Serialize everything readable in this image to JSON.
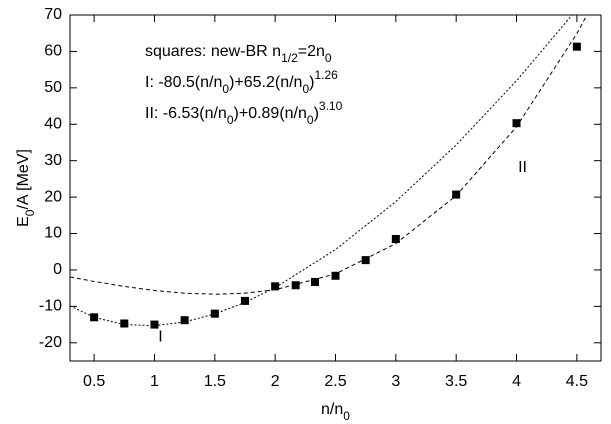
{
  "chart_data": {
    "type": "line",
    "xlabel": [
      {
        "text": "n/n"
      },
      {
        "text": "0",
        "style": "sub"
      }
    ],
    "ylabel": [
      {
        "text": "E"
      },
      {
        "text": "0",
        "style": "sub"
      },
      {
        "text": "/A  [MeV]"
      }
    ],
    "annotation": [
      [
        {
          "text": "squares: new-BR n"
        },
        {
          "text": "1/2",
          "style": "sub"
        },
        {
          "text": "=2n"
        },
        {
          "text": "0",
          "style": "sub"
        }
      ],
      [
        {
          "text": "I: -80.5(n/n"
        },
        {
          "text": "0",
          "style": "sub"
        },
        {
          "text": ")+65.2(n/n"
        },
        {
          "text": "0",
          "style": "sub"
        },
        {
          "text": ")"
        },
        {
          "text": "1.26",
          "style": "sup"
        }
      ],
      [
        {
          "text": "II: -6.53(n/n"
        },
        {
          "text": "0",
          "style": "sub"
        },
        {
          "text": ")+0.89(n/n"
        },
        {
          "text": "0",
          "style": "sub"
        },
        {
          "text": ")"
        },
        {
          "text": "3.10",
          "style": "sup"
        }
      ]
    ],
    "x": [
      0.3,
      0.5,
      0.75,
      1,
      1.25,
      1.5,
      1.75,
      2,
      2.5,
      3,
      3.5,
      4,
      4.5,
      4.7
    ],
    "series": [
      {
        "name": "I",
        "color": "#000000",
        "dash": "2,2",
        "label_at": [
          1.05,
          -18.5
        ],
        "values": [
          -9.84,
          -13.02,
          -15.0,
          -15.3,
          -14.27,
          -12.08,
          -8.91,
          -4.85,
          5.6,
          18.77,
          34.31,
          51.96,
          71.56,
          79.9
        ]
      },
      {
        "name": "II",
        "color": "#000000",
        "dash": "4,3",
        "label_at": [
          4.05,
          28
        ],
        "values": [
          -1.94,
          -3.16,
          -4.53,
          -5.64,
          -6.39,
          -6.67,
          -6.38,
          -5.43,
          -1.09,
          7.24,
          20.4,
          39.31,
          64.88,
          77.2
        ]
      }
    ],
    "markers": {
      "color": "#000000",
      "x": [
        0.5,
        0.75,
        1,
        1.25,
        1.5,
        1.75,
        2,
        2.17,
        2.33,
        2.5,
        2.75,
        3,
        3.5,
        4,
        4.5
      ],
      "values": [
        -13,
        -14.7,
        -15,
        -13.8,
        -12,
        -8.5,
        -4.5,
        -4.2,
        -3.3,
        -1.6,
        2.7,
        8.5,
        20.7,
        40.3,
        61.3
      ]
    },
    "xlim": [
      0.3,
      4.7
    ],
    "ylim": [
      -25,
      70
    ],
    "xticks": [
      0.5,
      1,
      1.5,
      2,
      2.5,
      3,
      3.5,
      4,
      4.5
    ],
    "yticks": [
      -20,
      -10,
      0,
      10,
      20,
      30,
      40,
      50,
      60,
      70
    ]
  }
}
